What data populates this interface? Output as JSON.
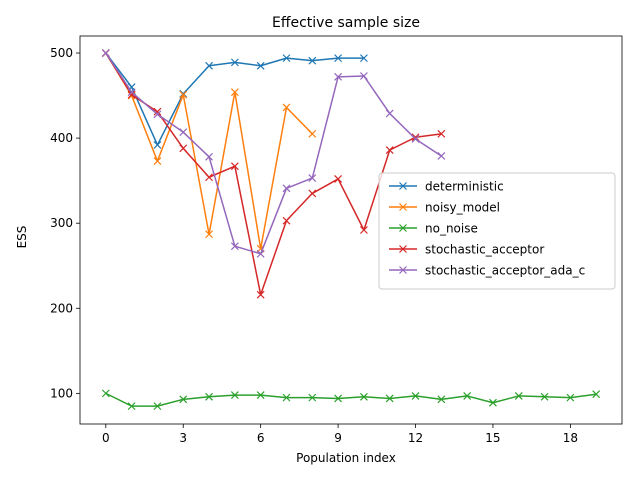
{
  "chart_data": {
    "type": "line",
    "title": "Effective sample size",
    "xlabel": "Population index",
    "ylabel": "ESS",
    "xlim": [
      -1.0,
      20.0
    ],
    "ylim": [
      64,
      520
    ],
    "xticks": [
      0,
      3,
      6,
      9,
      12,
      15,
      18
    ],
    "yticks": [
      100,
      200,
      300,
      400,
      500
    ],
    "grid": false,
    "legend_position": "center-right",
    "marker": "x",
    "series": [
      {
        "name": "deterministic",
        "color": "#1f77b4",
        "x": [
          0,
          1,
          2,
          3,
          4,
          5,
          6,
          7,
          8,
          9,
          10
        ],
        "y": [
          500,
          460,
          392,
          452,
          485,
          489,
          485,
          494,
          491,
          494,
          494
        ]
      },
      {
        "name": "noisy_model",
        "color": "#ff7f0e",
        "x": [
          0,
          1,
          2,
          3,
          4,
          5,
          6,
          7,
          8
        ],
        "y": [
          500,
          450,
          373,
          451,
          287,
          454,
          270,
          436,
          405
        ]
      },
      {
        "name": "no_noise",
        "color": "#2ca02c",
        "x": [
          0,
          1,
          2,
          3,
          4,
          5,
          6,
          7,
          8,
          9,
          10,
          11,
          12,
          13,
          14,
          15,
          16,
          17,
          18,
          19
        ],
        "y": [
          100,
          85,
          85,
          93,
          96,
          98,
          98,
          95,
          95,
          94,
          96,
          94,
          97,
          93,
          97,
          89,
          97,
          96,
          95,
          99
        ]
      },
      {
        "name": "stochastic_acceptor",
        "color": "#d62728",
        "x": [
          0,
          1,
          2,
          3,
          4,
          5,
          6,
          7,
          8,
          9,
          10,
          11,
          12,
          13
        ],
        "y": [
          500,
          451,
          431,
          388,
          354,
          367,
          216,
          303,
          335,
          352,
          292,
          386,
          401,
          405
        ]
      },
      {
        "name": "stochastic_acceptor_ada_c",
        "color": "#9467bd",
        "x": [
          0,
          1,
          2,
          3,
          4,
          5,
          6,
          7,
          8,
          9,
          10,
          11,
          12,
          13
        ],
        "y": [
          500,
          454,
          428,
          407,
          378,
          273,
          264,
          341,
          353,
          472,
          473,
          429,
          399,
          379
        ]
      }
    ]
  }
}
